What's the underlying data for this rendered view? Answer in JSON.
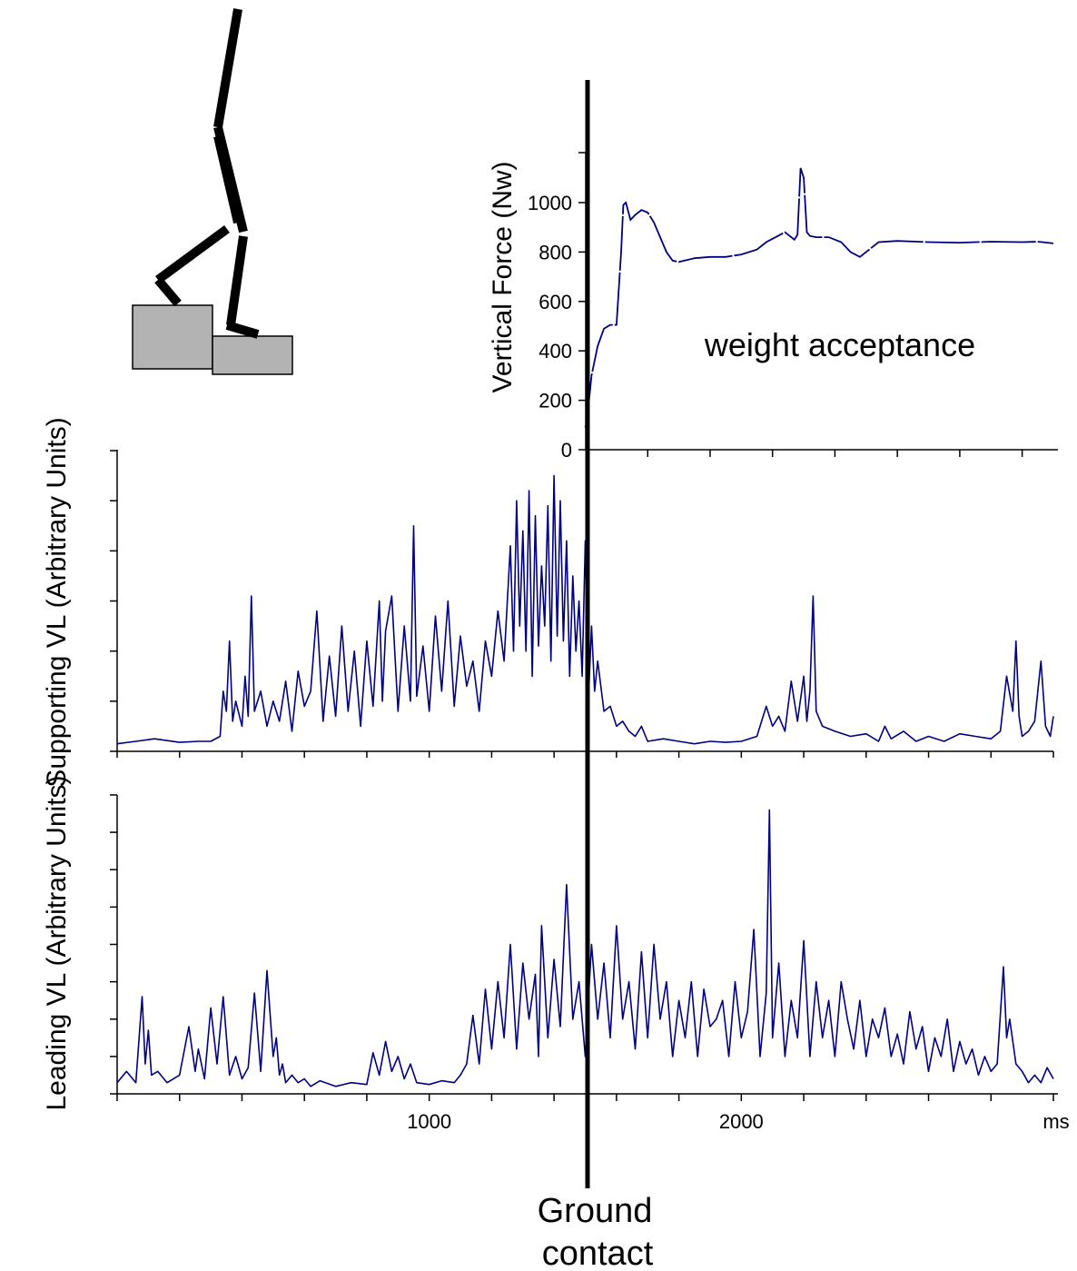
{
  "figure": {
    "line_color": "#000080",
    "illustration": {
      "name": "stair-step-stick-figure",
      "fill": "#b3b3b3",
      "stroke": "#000000"
    },
    "ground_contact": {
      "label_line1": "Ground",
      "label_line2": "contact",
      "x_ms": 1500
    },
    "x_unit": "ms"
  },
  "chart_data": [
    {
      "type": "line",
      "id": "force",
      "title": "",
      "ylabel": "Vertical Force (Nw)",
      "ylim": [
        0,
        1100
      ],
      "yticks": [
        0,
        200,
        400,
        600,
        800,
        1000
      ],
      "xlim": [
        1500,
        3000
      ],
      "annotation": "weight acceptance",
      "series": [
        {
          "x": [
            1500,
            1505,
            1520,
            1540,
            1560,
            1580,
            1600,
            1615,
            1622,
            1630,
            1645,
            1660,
            1680,
            1700,
            1720,
            1740,
            1760,
            1780,
            1800,
            1850,
            1900,
            1950,
            2000,
            2050,
            2080,
            2110,
            2140,
            2160,
            2170,
            2180,
            2190,
            2200,
            2210,
            2220,
            2240,
            2280,
            2320,
            2350,
            2380,
            2410,
            2440,
            2500,
            2600,
            2700,
            2800,
            2900,
            2950,
            3000
          ],
          "y": [
            90,
            110,
            300,
            420,
            490,
            505,
            505,
            800,
            990,
            1000,
            930,
            950,
            970,
            960,
            920,
            860,
            800,
            765,
            760,
            775,
            780,
            780,
            790,
            810,
            840,
            860,
            880,
            860,
            850,
            870,
            1140,
            1100,
            880,
            865,
            860,
            860,
            840,
            800,
            780,
            810,
            840,
            845,
            840,
            838,
            842,
            840,
            842,
            835
          ]
        }
      ]
    },
    {
      "type": "line",
      "id": "supporting",
      "title": "",
      "ylabel": "Supporting VL (Arbitrary Units)",
      "ylim": [
        0,
        6
      ],
      "xlim": [
        0,
        3000
      ],
      "series": [
        {
          "x": [
            0,
            60,
            120,
            200,
            260,
            300,
            330,
            340,
            350,
            360,
            370,
            380,
            400,
            410,
            420,
            430,
            440,
            460,
            480,
            500,
            520,
            540,
            560,
            580,
            600,
            620,
            640,
            660,
            680,
            700,
            720,
            740,
            760,
            780,
            800,
            820,
            840,
            850,
            860,
            880,
            900,
            920,
            940,
            950,
            960,
            980,
            1000,
            1020,
            1040,
            1060,
            1080,
            1100,
            1120,
            1140,
            1160,
            1180,
            1200,
            1220,
            1240,
            1260,
            1270,
            1280,
            1290,
            1300,
            1310,
            1320,
            1330,
            1340,
            1350,
            1360,
            1370,
            1380,
            1390,
            1400,
            1410,
            1420,
            1430,
            1440,
            1450,
            1460,
            1470,
            1480,
            1490,
            1500,
            1510,
            1520,
            1530,
            1540,
            1560,
            1580,
            1600,
            1620,
            1640,
            1660,
            1680,
            1700,
            1750,
            1800,
            1850,
            1900,
            1950,
            2000,
            2050,
            2080,
            2100,
            2120,
            2140,
            2160,
            2180,
            2200,
            2210,
            2220,
            2230,
            2240,
            2260,
            2300,
            2350,
            2400,
            2440,
            2460,
            2480,
            2520,
            2560,
            2600,
            2650,
            2700,
            2750,
            2800,
            2830,
            2850,
            2870,
            2880,
            2890,
            2900,
            2920,
            2940,
            2960,
            2975,
            2990,
            3000
          ],
          "y": [
            0.15,
            0.2,
            0.25,
            0.18,
            0.2,
            0.2,
            0.3,
            1.2,
            0.8,
            2.2,
            0.6,
            1.0,
            0.5,
            1.5,
            0.7,
            3.1,
            0.8,
            1.2,
            0.5,
            1.0,
            0.6,
            1.4,
            0.4,
            1.6,
            0.9,
            1.2,
            2.8,
            0.6,
            1.9,
            0.7,
            2.5,
            0.8,
            2.0,
            0.5,
            2.2,
            0.9,
            3.0,
            1.0,
            2.4,
            3.1,
            0.8,
            2.5,
            1.0,
            4.5,
            1.1,
            2.1,
            0.8,
            2.7,
            1.2,
            3.0,
            0.9,
            2.3,
            1.3,
            1.8,
            0.8,
            2.2,
            1.5,
            2.8,
            1.8,
            4.1,
            2.0,
            5.0,
            2.5,
            4.4,
            2.0,
            5.2,
            1.5,
            4.7,
            2.1,
            3.7,
            2.5,
            4.9,
            1.8,
            5.5,
            2.3,
            5.0,
            2.2,
            4.2,
            1.5,
            3.5,
            2.0,
            3.0,
            1.5,
            4.2,
            1.0,
            2.5,
            1.2,
            1.8,
            0.8,
            0.9,
            0.5,
            0.6,
            0.4,
            0.3,
            0.5,
            0.2,
            0.25,
            0.2,
            0.15,
            0.2,
            0.18,
            0.2,
            0.3,
            0.9,
            0.5,
            0.7,
            0.4,
            1.4,
            0.6,
            1.5,
            0.6,
            1.2,
            3.1,
            0.8,
            0.5,
            0.4,
            0.3,
            0.35,
            0.2,
            0.5,
            0.25,
            0.4,
            0.2,
            0.3,
            0.2,
            0.35,
            0.3,
            0.25,
            0.4,
            1.5,
            0.8,
            2.2,
            0.7,
            0.3,
            0.4,
            0.6,
            1.8,
            0.5,
            0.3,
            0.7
          ]
        }
      ]
    },
    {
      "type": "line",
      "id": "leading",
      "title": "",
      "ylabel": "Leading VL (Arbitrary Units)",
      "ylim": [
        0,
        8
      ],
      "xticks": [
        1000,
        2000
      ],
      "xlim": [
        0,
        3000
      ],
      "series": [
        {
          "x": [
            0,
            30,
            60,
            80,
            90,
            100,
            110,
            130,
            160,
            200,
            230,
            250,
            260,
            280,
            300,
            320,
            340,
            360,
            380,
            400,
            420,
            440,
            460,
            480,
            500,
            510,
            520,
            530,
            540,
            560,
            580,
            600,
            620,
            650,
            700,
            750,
            800,
            820,
            840,
            860,
            880,
            900,
            920,
            940,
            960,
            1000,
            1040,
            1080,
            1100,
            1120,
            1140,
            1160,
            1180,
            1200,
            1220,
            1240,
            1260,
            1280,
            1300,
            1320,
            1340,
            1350,
            1360,
            1380,
            1400,
            1420,
            1440,
            1460,
            1480,
            1500,
            1520,
            1540,
            1560,
            1580,
            1600,
            1620,
            1640,
            1660,
            1680,
            1700,
            1720,
            1740,
            1760,
            1780,
            1800,
            1820,
            1840,
            1860,
            1880,
            1900,
            1920,
            1940,
            1960,
            1980,
            2000,
            2020,
            2040,
            2060,
            2080,
            2090,
            2100,
            2120,
            2140,
            2160,
            2180,
            2200,
            2220,
            2240,
            2260,
            2280,
            2300,
            2320,
            2340,
            2360,
            2380,
            2400,
            2420,
            2440,
            2460,
            2480,
            2500,
            2520,
            2540,
            2560,
            2580,
            2600,
            2620,
            2640,
            2660,
            2680,
            2700,
            2720,
            2740,
            2760,
            2780,
            2800,
            2820,
            2840,
            2850,
            2860,
            2880,
            2900,
            2920,
            2940,
            2960,
            2980,
            3000
          ],
          "y": [
            0.3,
            0.6,
            0.3,
            2.6,
            0.8,
            1.7,
            0.5,
            0.6,
            0.3,
            0.5,
            1.8,
            0.6,
            1.2,
            0.4,
            2.3,
            0.8,
            2.6,
            0.5,
            1.0,
            0.4,
            0.7,
            2.7,
            0.6,
            3.3,
            1.0,
            1.5,
            0.5,
            0.8,
            0.3,
            0.5,
            0.3,
            0.4,
            0.2,
            0.35,
            0.2,
            0.3,
            0.25,
            1.1,
            0.5,
            1.4,
            0.6,
            1.0,
            0.4,
            0.8,
            0.3,
            0.25,
            0.35,
            0.3,
            0.5,
            0.8,
            2.1,
            0.8,
            2.8,
            1.2,
            3.0,
            1.5,
            4.0,
            1.2,
            3.5,
            2.0,
            3.2,
            1.0,
            4.5,
            1.5,
            3.6,
            1.8,
            5.6,
            2.0,
            3.0,
            1.0,
            4.0,
            2.0,
            3.5,
            1.5,
            4.5,
            2.0,
            3.0,
            1.2,
            3.8,
            1.5,
            4.0,
            2.0,
            3.0,
            1.0,
            2.5,
            1.5,
            3.0,
            1.0,
            2.8,
            1.8,
            2.0,
            2.5,
            1.0,
            3.0,
            1.5,
            2.2,
            4.4,
            1.0,
            2.7,
            7.6,
            1.5,
            3.5,
            1.0,
            2.5,
            1.5,
            4.1,
            1.0,
            3.0,
            1.5,
            2.5,
            1.0,
            3.0,
            2.0,
            1.2,
            2.5,
            1.0,
            2.0,
            1.5,
            2.3,
            1.0,
            1.6,
            0.8,
            2.2,
            1.2,
            1.8,
            0.6,
            1.5,
            1.0,
            2.0,
            0.6,
            1.4,
            0.8,
            1.2,
            0.5,
            1.0,
            0.6,
            0.8,
            3.4,
            1.5,
            2.0,
            0.8,
            0.6,
            0.3,
            0.5,
            0.3,
            0.7,
            0.4
          ]
        }
      ]
    }
  ]
}
